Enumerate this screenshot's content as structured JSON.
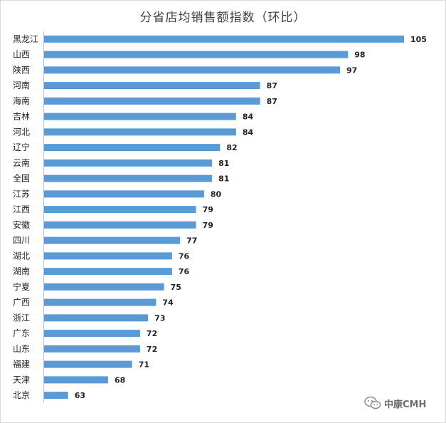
{
  "chart_data": {
    "type": "bar",
    "orientation": "horizontal",
    "title": "分省店均销售额指数（环比）",
    "categories": [
      "黑龙江",
      "山西",
      "陕西",
      "河南",
      "海南",
      "吉林",
      "河北",
      "辽宁",
      "云南",
      "全国",
      "江苏",
      "江西",
      "安徽",
      "四川",
      "湖北",
      "湖南",
      "宁夏",
      "广西",
      "浙江",
      "广东",
      "山东",
      "福建",
      "天津",
      "北京"
    ],
    "values": [
      105,
      98,
      97,
      87,
      87,
      84,
      84,
      82,
      81,
      81,
      80,
      79,
      79,
      77,
      76,
      76,
      75,
      74,
      73,
      72,
      72,
      71,
      68,
      63
    ],
    "xlim": [
      60,
      105
    ],
    "grid": false,
    "legend": "none",
    "bar_color": "#5b9bd5"
  },
  "watermark": {
    "icon": "wechat-icon",
    "text": "中康CMH"
  }
}
